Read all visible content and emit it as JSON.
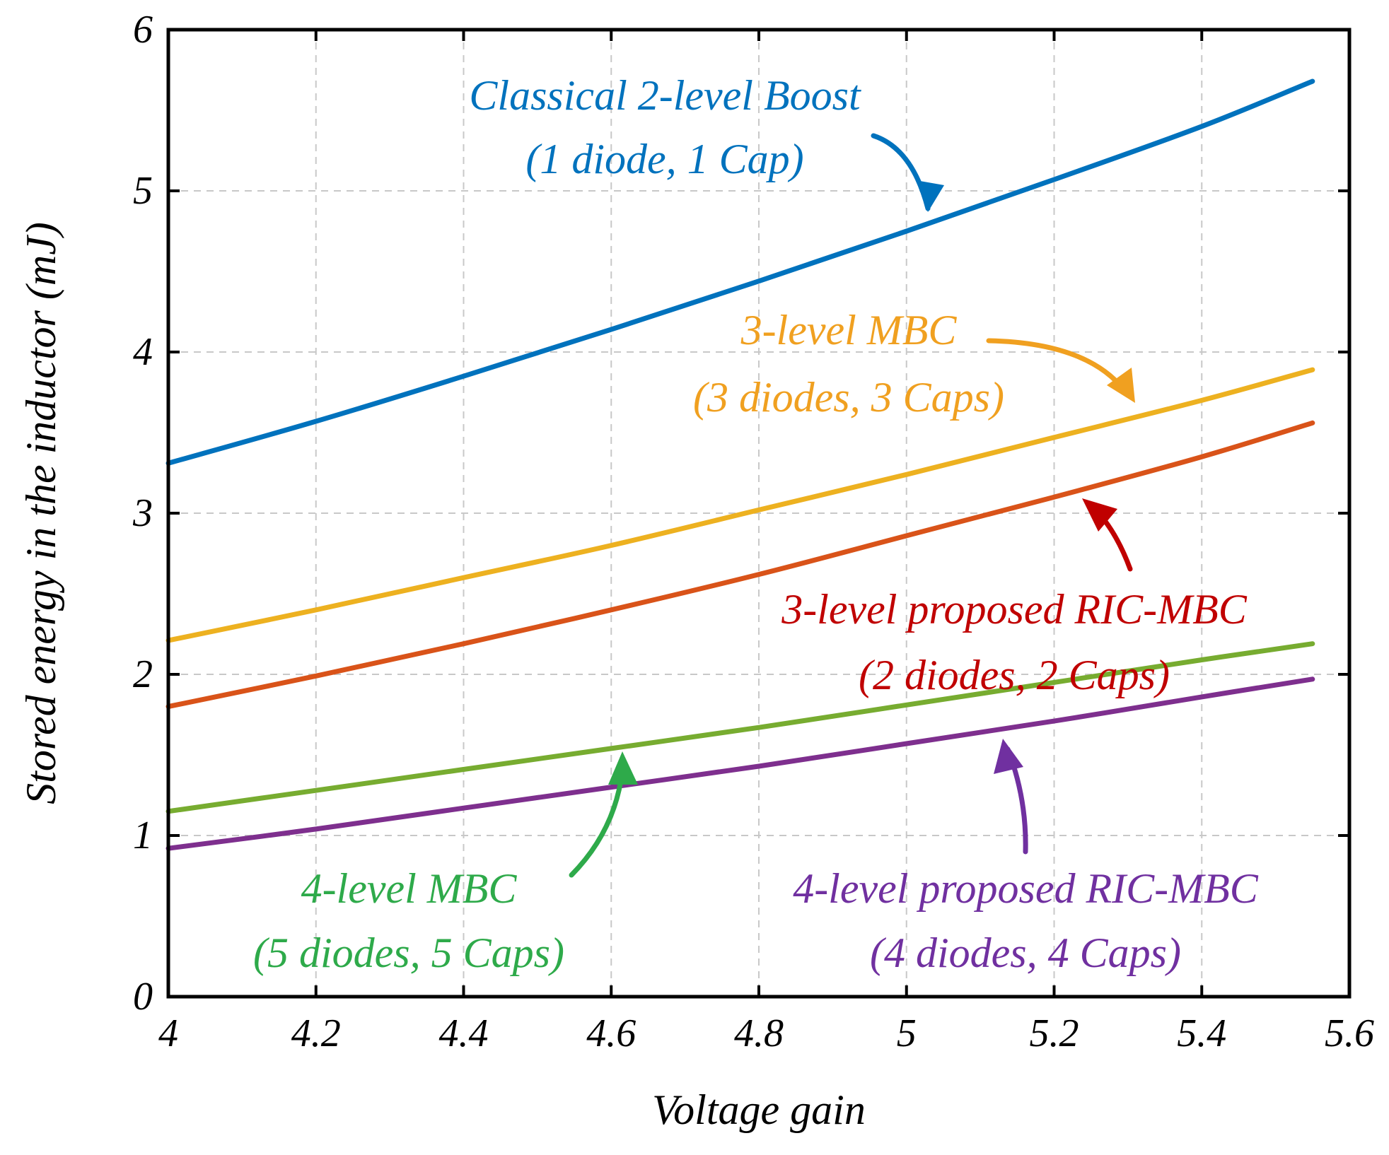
{
  "chart_data": {
    "type": "line",
    "title": "",
    "xlabel": "Voltage gain",
    "ylabel": "Stored energy in the inductor (mJ)",
    "xlim": [
      4,
      5.6
    ],
    "ylim": [
      0,
      6
    ],
    "xticks": [
      4,
      4.2,
      4.4,
      4.6,
      4.8,
      5,
      5.2,
      5.4,
      5.6
    ],
    "xtick_labels": [
      "4",
      "4.2",
      "4.4",
      "4.6",
      "4.8",
      "5",
      "5.2",
      "5.4",
      "5.6"
    ],
    "yticks": [
      0,
      1,
      2,
      3,
      4,
      5,
      6
    ],
    "ytick_labels": [
      "0",
      "1",
      "2",
      "3",
      "4",
      "5",
      "6"
    ],
    "grid": true,
    "x": [
      4.0,
      4.2,
      4.4,
      4.6,
      4.8,
      5.0,
      5.2,
      5.4,
      5.55
    ],
    "series": [
      {
        "key": "classical",
        "color": "#0072BD",
        "values": [
          3.31,
          3.57,
          3.85,
          4.14,
          4.44,
          4.75,
          5.07,
          5.4,
          5.68
        ]
      },
      {
        "key": "mbc3",
        "color": "#EDB120",
        "values": [
          2.21,
          2.4,
          2.6,
          2.8,
          3.02,
          3.24,
          3.47,
          3.7,
          3.89
        ]
      },
      {
        "key": "ric3",
        "color": "#D95319",
        "values": [
          1.8,
          1.99,
          2.19,
          2.4,
          2.62,
          2.86,
          3.1,
          3.35,
          3.56
        ]
      },
      {
        "key": "mbc4",
        "color": "#77AC30",
        "values": [
          1.15,
          1.28,
          1.41,
          1.54,
          1.67,
          1.81,
          1.95,
          2.09,
          2.19
        ]
      },
      {
        "key": "ric4",
        "color": "#7E2F8E",
        "values": [
          0.92,
          1.04,
          1.17,
          1.3,
          1.43,
          1.57,
          1.71,
          1.86,
          1.97
        ]
      }
    ],
    "annotations": [
      {
        "key": "classical",
        "color": "#0072BD",
        "line1": "Classical 2-level Boost",
        "line2": "(1 diode, 1 Cap)"
      },
      {
        "key": "mbc3",
        "color": "#F0A020",
        "line1": "3-level MBC",
        "line2": "(3 diodes, 3 Caps)"
      },
      {
        "key": "ric3",
        "color": "#C00000",
        "line1": "3-level proposed RIC-MBC",
        "line2": "(2 diodes, 2 Caps)"
      },
      {
        "key": "mbc4",
        "color": "#2EAA4A",
        "line1": "4-level MBC",
        "line2": "(5 diodes, 5 Caps)"
      },
      {
        "key": "ric4",
        "color": "#7030A0",
        "line1": "4-level proposed RIC-MBC",
        "line2": "(4 diodes, 4 Caps)"
      }
    ]
  }
}
